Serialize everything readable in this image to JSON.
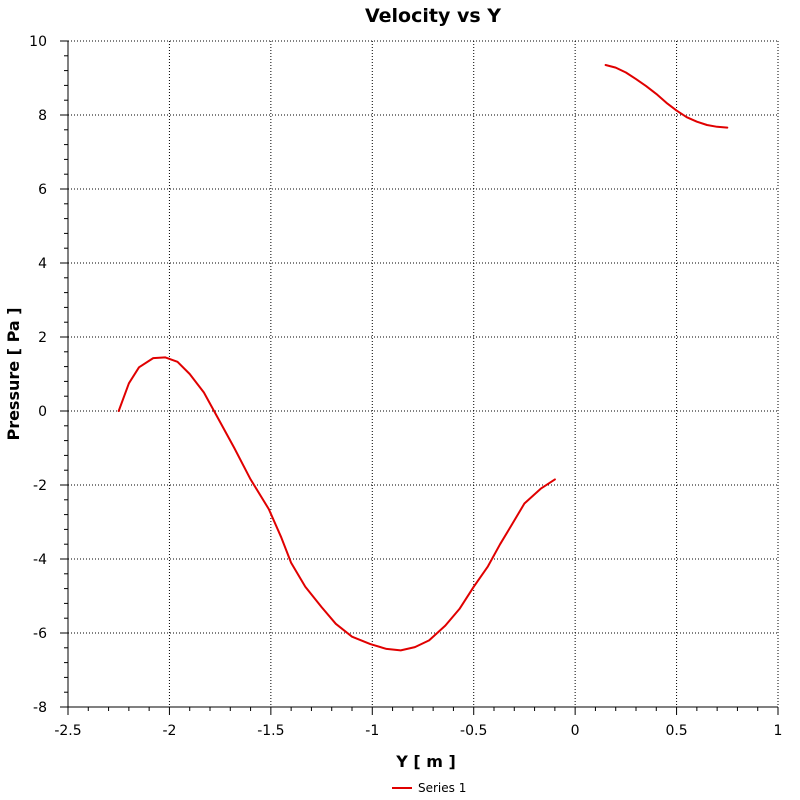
{
  "chart_data": {
    "type": "line",
    "title": "Velocity vs Y",
    "xlabel": "Y [ m ]",
    "ylabel": "Pressure [ Pa ]",
    "xlim": [
      -2.5,
      1
    ],
    "ylim": [
      -8,
      10
    ],
    "xticks": [
      -2.5,
      -2,
      -1.5,
      -1,
      -0.5,
      0,
      0.5,
      1
    ],
    "yticks": [
      -8,
      -6,
      -4,
      -2,
      0,
      2,
      4,
      6,
      8,
      10
    ],
    "xtick_labels": [
      "-2.5",
      "-2",
      "-1.5",
      "-1",
      "-0.5",
      "0",
      "0.5",
      "1"
    ],
    "ytick_labels": [
      "-8",
      "-6",
      "-4",
      "-2",
      "0",
      "2",
      "4",
      "6",
      "8",
      "10"
    ],
    "grid": true,
    "legend_position": "bottom-center",
    "series": [
      {
        "name": "Series 1",
        "color": "#e00000",
        "segments": [
          {
            "x": [
              -2.25,
              -2.2,
              -2.15,
              -2.08,
              -2.02,
              -1.96,
              -1.9,
              -1.83,
              -1.76,
              -1.68,
              -1.6,
              -1.51,
              -1.45,
              -1.4,
              -1.33,
              -1.25,
              -1.18,
              -1.1,
              -1.01,
              -0.93,
              -0.86,
              -0.79,
              -0.72,
              -0.64,
              -0.57,
              -0.5,
              -0.43,
              -0.37,
              -0.31,
              -0.25,
              -0.17,
              -0.1
            ],
            "y": [
              0,
              0.75,
              1.18,
              1.43,
              1.45,
              1.33,
              1.0,
              0.5,
              -0.2,
              -1.0,
              -1.85,
              -2.65,
              -3.4,
              -4.1,
              -4.75,
              -5.3,
              -5.75,
              -6.1,
              -6.3,
              -6.43,
              -6.47,
              -6.38,
              -6.2,
              -5.8,
              -5.35,
              -4.75,
              -4.2,
              -3.6,
              -3.05,
              -2.5,
              -2.1,
              -1.85
            ]
          },
          {
            "x": [
              0.15,
              0.2,
              0.25,
              0.3,
              0.35,
              0.4,
              0.45,
              0.5,
              0.55,
              0.6,
              0.65,
              0.7,
              0.75
            ],
            "y": [
              9.35,
              9.28,
              9.15,
              8.97,
              8.78,
              8.57,
              8.33,
              8.12,
              7.94,
              7.82,
              7.73,
              7.68,
              7.66
            ]
          }
        ]
      }
    ]
  }
}
